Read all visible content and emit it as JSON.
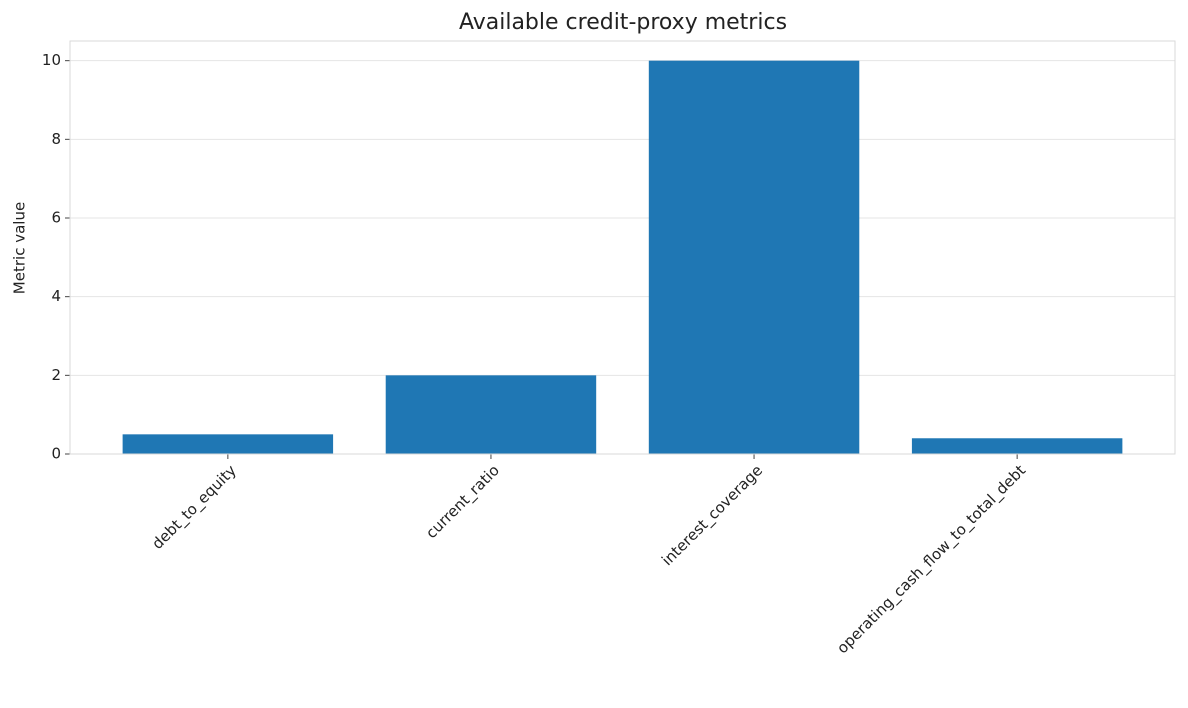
{
  "chart_data": {
    "type": "bar",
    "title": "Available credit-proxy metrics",
    "y_label": "Metric value",
    "categories": [
      "debt_to_equity",
      "current_ratio",
      "interest_coverage",
      "operating_cash_flow_to_total_debt"
    ],
    "values": [
      0.5,
      2.0,
      10.0,
      0.4
    ],
    "color": "#1f77b4",
    "ylim": [
      0,
      10.5
    ],
    "yticks": [
      0,
      2,
      4,
      6,
      8,
      10
    ],
    "grid": true
  }
}
